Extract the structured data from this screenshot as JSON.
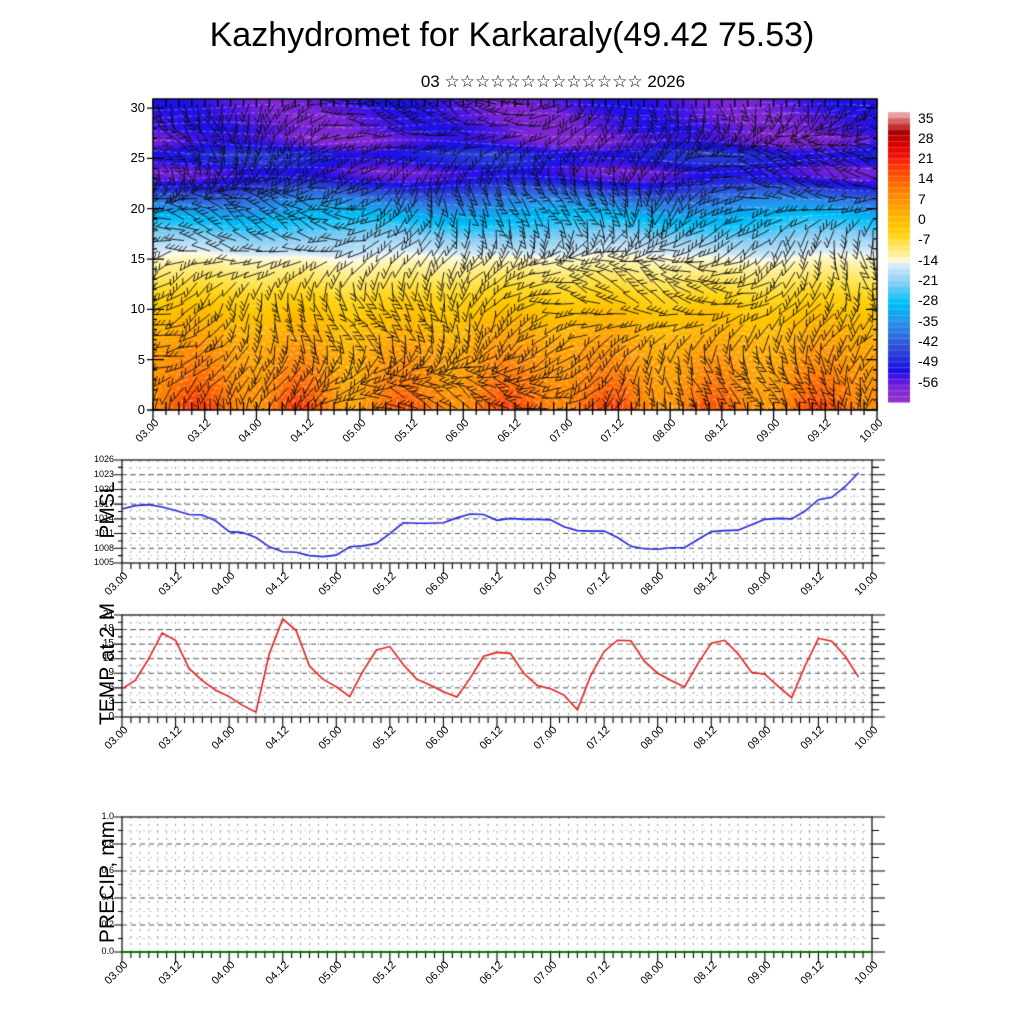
{
  "header": {
    "title": "Kazhydromet for Karkaraly(49.42 75.53)",
    "subtitle": "03 ☆☆☆☆☆☆☆☆☆☆☆☆☆ 2026"
  },
  "x_axis": {
    "tick_labels": [
      "03.00",
      "03.12",
      "04.00",
      "04.12",
      "05.00",
      "05.12",
      "06.00",
      "06.12",
      "07.00",
      "07.12",
      "08.00",
      "08.12",
      "09.00",
      "09.12",
      "10.00"
    ],
    "major_step_hours": 12,
    "minor_step_hours": 2,
    "total_hours": 168
  },
  "chart_data": [
    {
      "id": "cross_section",
      "type": "heatmap",
      "ylabel": "",
      "ylim": [
        0,
        30.9
      ],
      "y_ticks": [
        0,
        5,
        10,
        15,
        20,
        25,
        30
      ],
      "overlays": [
        "wind-barbs",
        "white-contours"
      ],
      "profile_y_temp": [
        [
          0,
          13
        ],
        [
          2,
          10.5
        ],
        [
          4,
          8
        ],
        [
          6,
          5.5
        ],
        [
          8,
          2
        ],
        [
          10,
          -1.5
        ],
        [
          12,
          -6
        ],
        [
          14,
          -10.5
        ],
        [
          15,
          -13
        ],
        [
          16,
          -16.5
        ],
        [
          17,
          -20
        ],
        [
          18,
          -24
        ],
        [
          19,
          -28
        ],
        [
          20,
          -33
        ],
        [
          21,
          -38
        ],
        [
          22,
          -45
        ],
        [
          23,
          -52
        ],
        [
          23.8,
          -54
        ],
        [
          24.5,
          -50
        ],
        [
          25.5,
          -48
        ],
        [
          26.2,
          -53
        ],
        [
          27,
          -56
        ],
        [
          28,
          -54
        ],
        [
          29,
          -55
        ],
        [
          30,
          -54
        ]
      ],
      "diurnal_amp_by_day": [
        5.5,
        7.5,
        5.0,
        4.5,
        5.0,
        5.5,
        5.5
      ],
      "colorbar": {
        "tick_labels": [
          "35",
          "28",
          "21",
          "14",
          "7",
          "0",
          "-7",
          "-14",
          "-21",
          "-28",
          "-35",
          "-42",
          "-49",
          "-56"
        ],
        "value_top": 38,
        "value_bottom": -62,
        "stops": [
          [
            38,
            "#f2bcbc"
          ],
          [
            34,
            "#d04848"
          ],
          [
            31,
            "#aa0000"
          ],
          [
            27,
            "#d80000"
          ],
          [
            23,
            "#f01010"
          ],
          [
            19,
            "#ff3a00"
          ],
          [
            15,
            "#ff5c00"
          ],
          [
            11,
            "#ff7c00"
          ],
          [
            7,
            "#ff9600"
          ],
          [
            3,
            "#ffae00"
          ],
          [
            -1,
            "#ffc400"
          ],
          [
            -5,
            "#ffd61e"
          ],
          [
            -8,
            "#ffe55a"
          ],
          [
            -11,
            "#fff098"
          ],
          [
            -13,
            "#fdf8cc"
          ],
          [
            -14,
            "#fbfce8"
          ],
          [
            -15,
            "#d8ecfa"
          ],
          [
            -18,
            "#abdaf6"
          ],
          [
            -21,
            "#84cdf4"
          ],
          [
            -24,
            "#46c6f8"
          ],
          [
            -27,
            "#0ac2fa"
          ],
          [
            -30,
            "#00b2f2"
          ],
          [
            -33,
            "#1e9cee"
          ],
          [
            -36,
            "#2a86e8"
          ],
          [
            -40,
            "#2c66de"
          ],
          [
            -44,
            "#2c48d6"
          ],
          [
            -48,
            "#2026dc"
          ],
          [
            -51,
            "#1c10e8"
          ],
          [
            -54,
            "#4c16e2"
          ],
          [
            -57,
            "#7c24d8"
          ],
          [
            -62,
            "#9632ca"
          ]
        ]
      }
    },
    {
      "id": "pmsl",
      "type": "line",
      "ylabel": "PMSL",
      "line_color": "#2828d8",
      "ylim": [
        1005,
        1026
      ],
      "y_major_step": 3,
      "y_minor_step": 1.5,
      "y_tick_labels": [
        "1005",
        "1008",
        "1011",
        "1014",
        "1017",
        "1020",
        "1023",
        "1026"
      ],
      "t_hours_start": 0,
      "t_hours_step": 3,
      "values": [
        1016.0,
        1016.7,
        1016.9,
        1016.4,
        1015.7,
        1014.9,
        1014.8,
        1013.6,
        1011.4,
        1011.2,
        1010.2,
        1008.3,
        1007.3,
        1007.2,
        1006.5,
        1006.3,
        1006.6,
        1008.3,
        1008.5,
        1009.0,
        1011.0,
        1013.2,
        1013.1,
        1013.1,
        1013.2,
        1014.2,
        1015.0,
        1014.9,
        1013.7,
        1014.1,
        1013.9,
        1013.9,
        1013.8,
        1012.4,
        1011.6,
        1011.5,
        1011.5,
        1010.2,
        1008.4,
        1007.9,
        1007.8,
        1008.1,
        1008.1,
        1009.8,
        1011.4,
        1011.6,
        1011.7,
        1012.8,
        1013.9,
        1014.1,
        1014.0,
        1015.6,
        1017.9,
        1018.4,
        1020.6,
        1023.4
      ]
    },
    {
      "id": "temp2m",
      "type": "line",
      "ylabel": "TEMP at 2 M",
      "line_color": "#e02020",
      "ylim": [
        0,
        21
      ],
      "y_major_step": 3,
      "y_minor_step": 1.5,
      "y_tick_labels": [
        "0",
        "3",
        "6",
        "9",
        "12",
        "15",
        "18",
        "21"
      ],
      "t_hours_start": 0,
      "t_hours_step": 3,
      "values": [
        5.8,
        7.6,
        12.0,
        17.3,
        15.8,
        10.0,
        7.5,
        5.5,
        4.2,
        2.4,
        1.0,
        13.0,
        20.2,
        17.8,
        10.5,
        7.8,
        6.2,
        4.2,
        9.5,
        13.8,
        14.5,
        10.8,
        7.8,
        6.6,
        5.2,
        4.1,
        8.0,
        12.5,
        13.3,
        13.1,
        9.0,
        6.5,
        5.8,
        4.5,
        1.5,
        8.5,
        13.5,
        15.8,
        15.7,
        11.5,
        9.0,
        7.5,
        6.2,
        11.0,
        15.2,
        15.8,
        13.0,
        9.2,
        8.8,
        6.3,
        4.0,
        10.5,
        16.2,
        15.6,
        12.5,
        8.2
      ]
    },
    {
      "id": "precip",
      "type": "line",
      "ylabel": "PRECIP, mm",
      "line_color": "#007700",
      "ylim": [
        0,
        1
      ],
      "y_major_step": 0.2,
      "y_minor_step": 0.1,
      "y_tick_labels": [
        "0.0",
        "0.2",
        "0.4",
        "0.6",
        "0.8",
        "1.0"
      ],
      "t_hours_start": 0,
      "t_hours_step": 3,
      "values": [
        0,
        0,
        0,
        0,
        0,
        0,
        0,
        0,
        0,
        0,
        0,
        0,
        0,
        0,
        0,
        0,
        0,
        0,
        0,
        0,
        0,
        0,
        0,
        0,
        0,
        0,
        0,
        0,
        0,
        0,
        0,
        0,
        0,
        0,
        0,
        0,
        0,
        0,
        0,
        0,
        0,
        0,
        0,
        0,
        0,
        0,
        0,
        0,
        0,
        0,
        0,
        0,
        0,
        0,
        0,
        0
      ]
    }
  ]
}
